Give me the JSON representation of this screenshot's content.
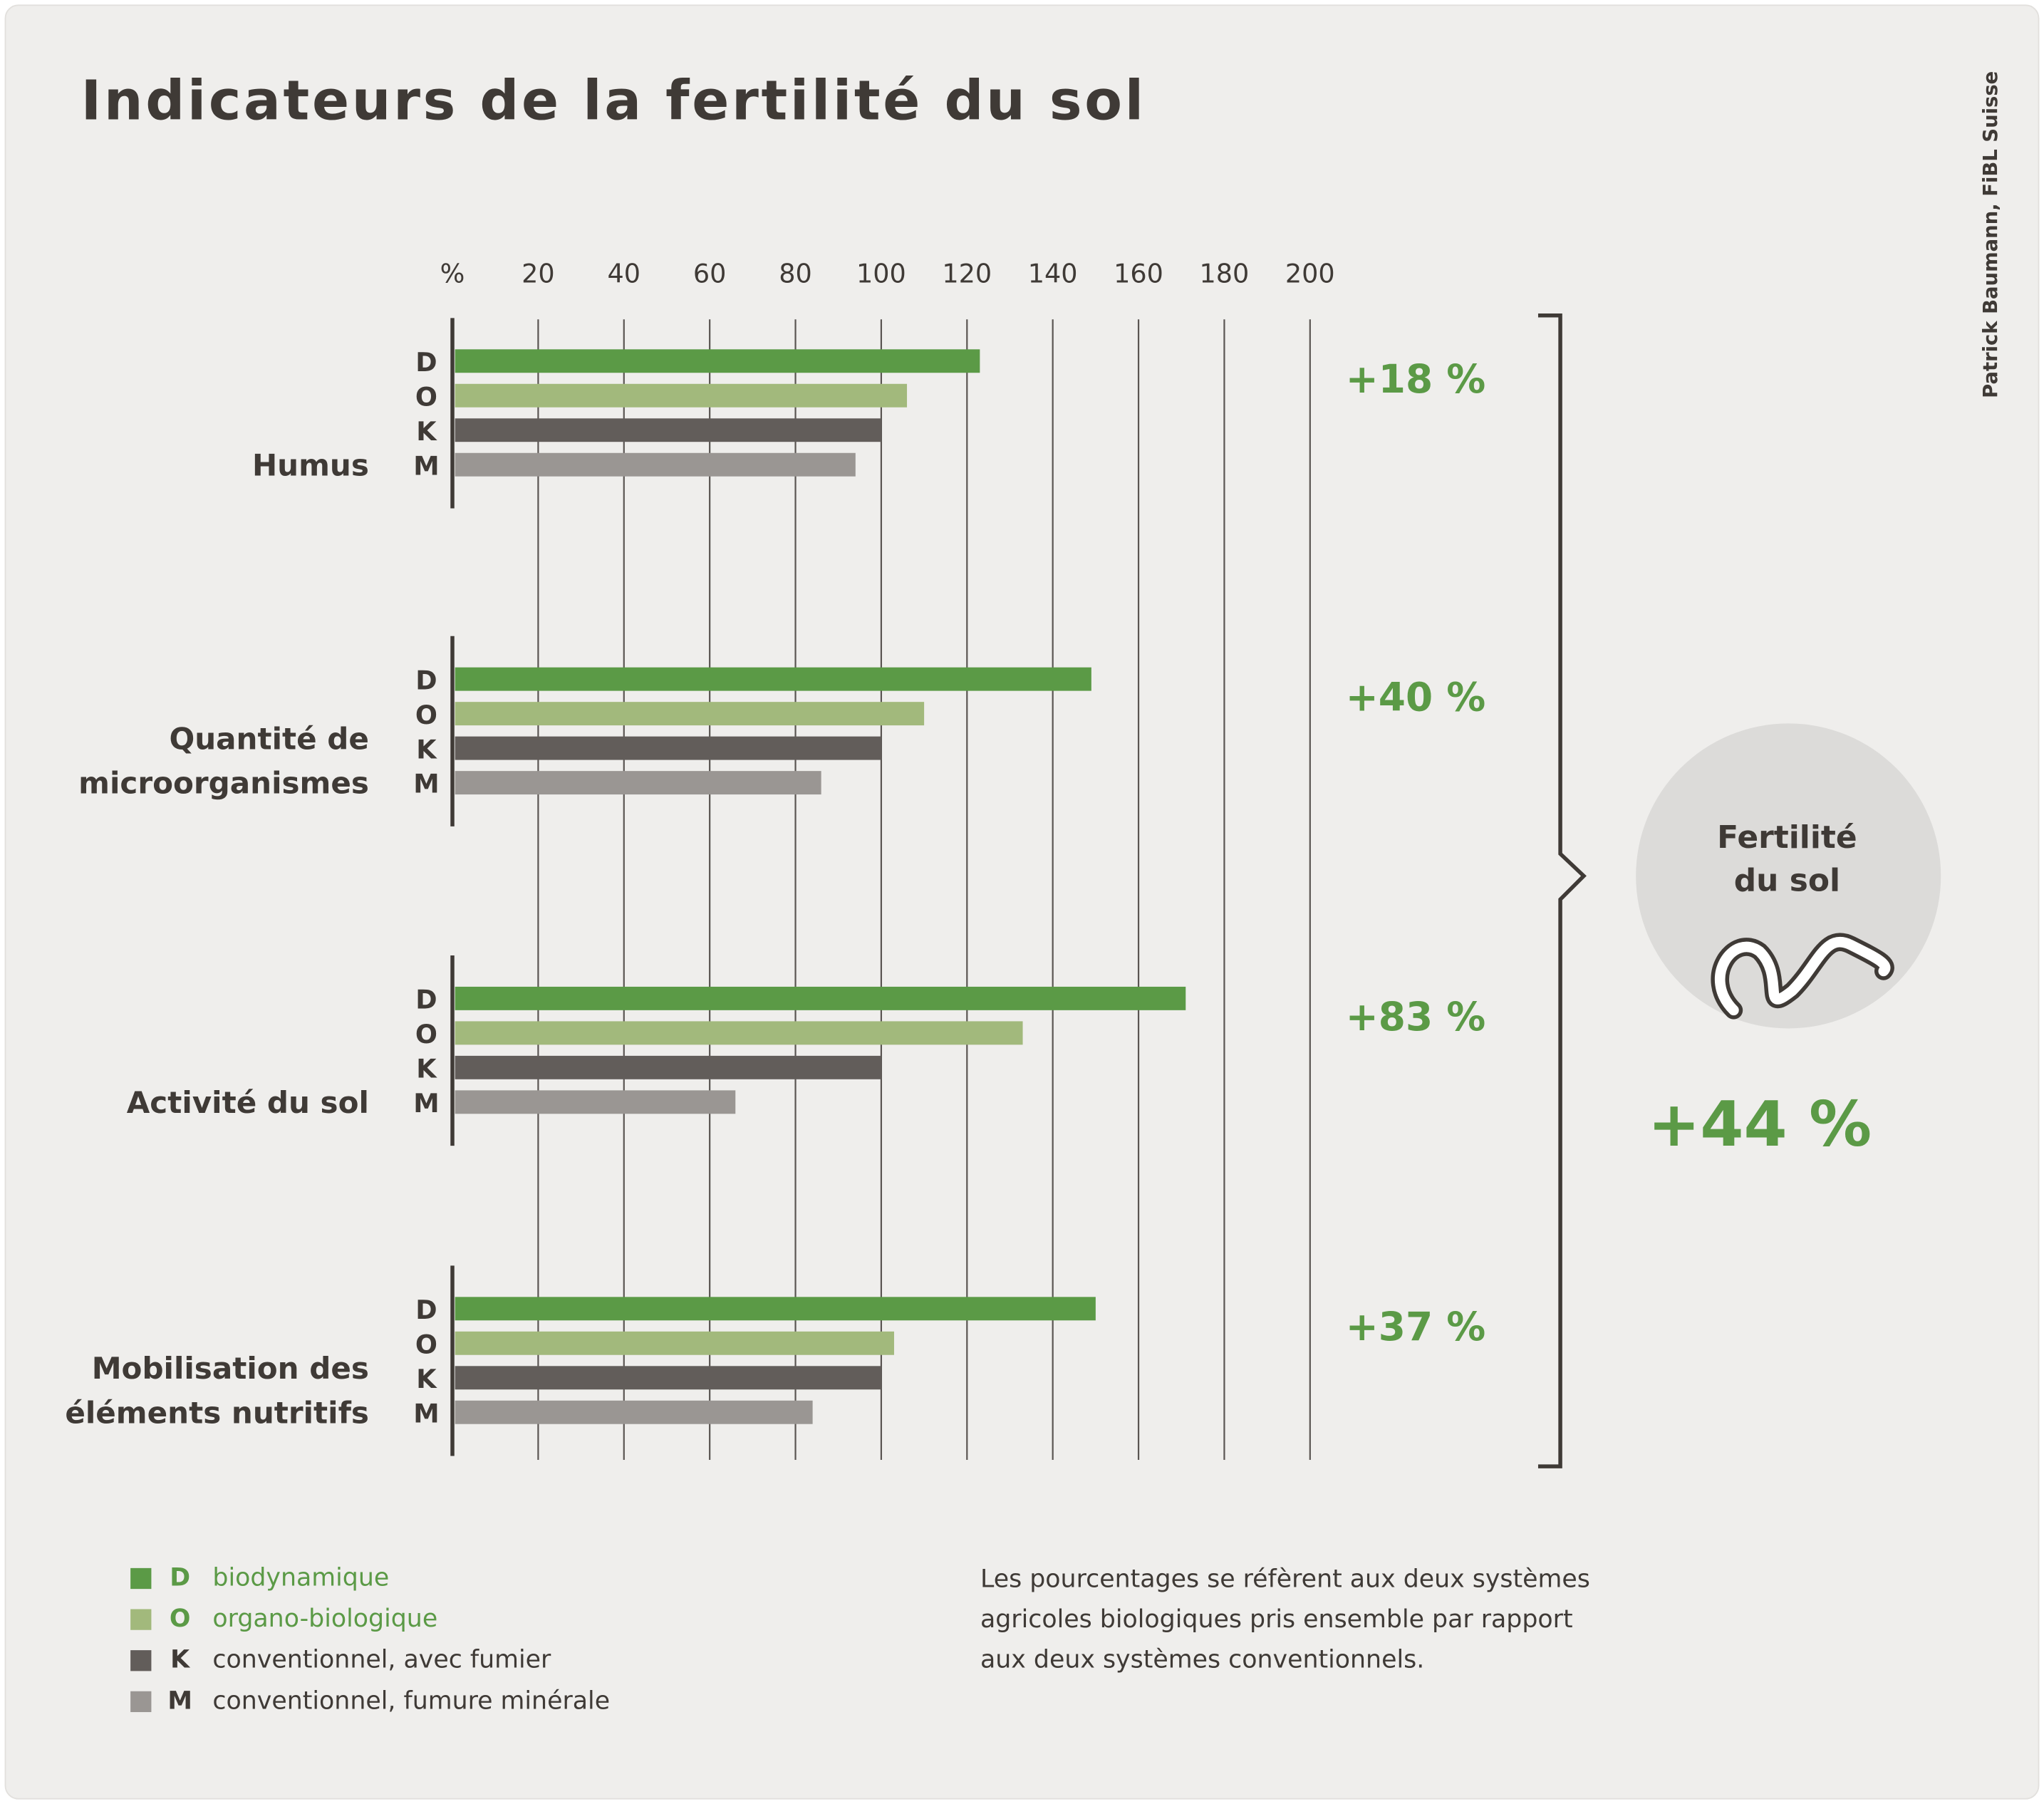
{
  "chart_data": {
    "type": "grouped-hbar",
    "title": "Indicateurs de la fertilité du sol",
    "credit": "Patrick Baumann, FiBL Suisse",
    "x_unit_label": "%",
    "xlim": [
      0,
      200
    ],
    "xticks": [
      20,
      40,
      60,
      80,
      100,
      120,
      140,
      160,
      180,
      200
    ],
    "grid": true,
    "categories": [
      [
        "Humus"
      ],
      [
        "Quantité de",
        "microorganismes"
      ],
      [
        "Activité du sol"
      ],
      [
        "Mobilisation des",
        "éléments nutritifs"
      ]
    ],
    "group_labels": [
      "+18 %",
      "+40 %",
      "+83 %",
      "+37 %"
    ],
    "series": [
      {
        "code": "D",
        "name": "biodynamique",
        "color": "#5b9a46",
        "label_color": "#5b9a46",
        "values": [
          123,
          149,
          171,
          150
        ]
      },
      {
        "code": "O",
        "name": "organo-biologique",
        "color": "#a2b97c",
        "label_color": "#5b9a46",
        "values": [
          106,
          110,
          133,
          103
        ]
      },
      {
        "code": "K",
        "name": "conventionnel, avec fumier",
        "color": "#625d5a",
        "label_color": "#3f3a36",
        "values": [
          100,
          100,
          100,
          100
        ]
      },
      {
        "code": "M",
        "name": "conventionnel, fumure minérale",
        "color": "#9a9693",
        "label_color": "#3f3a36",
        "values": [
          94,
          86,
          66,
          84
        ]
      }
    ],
    "summary": {
      "label": [
        "Fertilité",
        "du sol"
      ],
      "value_label": "+44 %"
    },
    "note": [
      "Les pourcentages se réfèrent aux deux systèmes",
      "agricoles biologiques pris ensemble par rapport",
      "aux deux systèmes conventionnels."
    ]
  }
}
